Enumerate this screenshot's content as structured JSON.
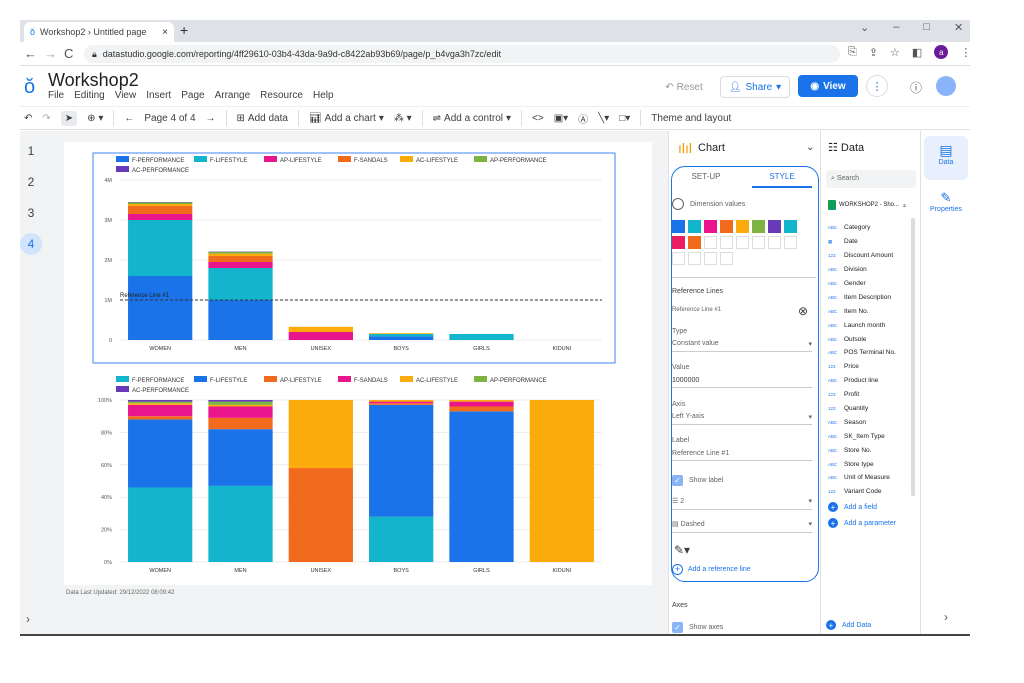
{
  "browser": {
    "tab_title": "Workshop2 › Untitled page",
    "tab_close": "×",
    "new_tab": "+",
    "url": "datastudio.google.com/reporting/4ff29610-03b4-43da-9a9d-c8422ab93b69/page/p_b4vga3h7zc/edit",
    "profile_initial": "a"
  },
  "app": {
    "title": "Workshop2",
    "menu": [
      "File",
      "Editing",
      "View",
      "Insert",
      "Page",
      "Arrange",
      "Resource",
      "Help"
    ],
    "reset_label": "Reset",
    "share_label": "Share",
    "view_label": "View"
  },
  "toolbar": {
    "page_nav": "Page 4 of 4",
    "add_data": "Add data",
    "add_chart": "Add a chart",
    "add_control": "Add a control",
    "theme_layout": "Theme and layout"
  },
  "pages": [
    "1",
    "2",
    "3",
    "4"
  ],
  "active_page": "4",
  "last_updated": "Data Last Updated: 29/12/2022 08:09:42",
  "chart_data": [
    {
      "type": "bar",
      "stacked": true,
      "categories": [
        "WOMEN",
        "MEN",
        "UNISEX",
        "BOYS",
        "GIRLS",
        "KIDUNI"
      ],
      "ylim": [
        0,
        4000000
      ],
      "yticks": [
        "0",
        "1M",
        "2M",
        "3M",
        "4M"
      ],
      "legend_position": "top",
      "reference_line": {
        "label": "Reference Line #1",
        "value": 1000000
      },
      "series": [
        {
          "name": "F-PERFORMANCE",
          "color": "#1a73e8",
          "values": [
            1600000,
            1000000,
            0,
            90000,
            0,
            0
          ]
        },
        {
          "name": "F-LIFESTYLE",
          "color": "#12b5cb",
          "values": [
            1400000,
            800000,
            0,
            60000,
            150000,
            0
          ]
        },
        {
          "name": "AP-LIFESTYLE",
          "color": "#e8158c",
          "values": [
            150000,
            150000,
            200000,
            0,
            0,
            0
          ]
        },
        {
          "name": "F-SANDALS",
          "color": "#f26b1d",
          "values": [
            200000,
            150000,
            0,
            0,
            0,
            0
          ]
        },
        {
          "name": "AC-LIFESTYLE",
          "color": "#fbab0b",
          "values": [
            50000,
            60000,
            130000,
            20000,
            0,
            0
          ]
        },
        {
          "name": "AP-PERFORMANCE",
          "color": "#7cb342",
          "values": [
            40000,
            40000,
            0,
            0,
            0,
            0
          ]
        },
        {
          "name": "AC-PERFORMANCE",
          "color": "#673ab7",
          "values": [
            10000,
            10000,
            0,
            0,
            0,
            0
          ]
        }
      ]
    },
    {
      "type": "bar",
      "stacked": true,
      "percent": true,
      "categories": [
        "WOMEN",
        "MEN",
        "UNISEX",
        "BOYS",
        "GIRLS",
        "KIDUNI"
      ],
      "ylim": [
        0,
        100
      ],
      "yticks": [
        "0%",
        "20%",
        "40%",
        "60%",
        "80%",
        "100%"
      ],
      "legend_position": "top",
      "series": [
        {
          "name": "F-PERFORMANCE",
          "color": "#12b5cb",
          "values": [
            46,
            47,
            0,
            28,
            0,
            0
          ]
        },
        {
          "name": "F-LIFESTYLE",
          "color": "#1a73e8",
          "values": [
            42,
            35,
            0,
            69,
            93,
            0
          ]
        },
        {
          "name": "AP-LIFESTYLE",
          "color": "#f26b1d",
          "values": [
            2,
            7,
            58,
            1,
            3,
            0
          ]
        },
        {
          "name": "F-SANDALS",
          "color": "#e8158c",
          "values": [
            7,
            7,
            0,
            1,
            3,
            0
          ]
        },
        {
          "name": "AC-LIFESTYLE",
          "color": "#fbab0b",
          "values": [
            1,
            1,
            42,
            1,
            1,
            100
          ]
        },
        {
          "name": "AP-PERFORMANCE",
          "color": "#7cb342",
          "values": [
            1,
            2,
            0,
            0,
            0,
            0
          ]
        },
        {
          "name": "AC-PERFORMANCE",
          "color": "#673ab7",
          "values": [
            1,
            1,
            0,
            0,
            0,
            0
          ]
        }
      ]
    }
  ],
  "chart_panel": {
    "title": "Chart",
    "tabs": [
      "SET-UP",
      "STYLE"
    ],
    "active_tab": "STYLE",
    "dimension_values": "Dimension values",
    "swatches": [
      "#1a73e8",
      "#12b5cb",
      "#e8158c",
      "#f26b1d",
      "#fbab0b",
      "#7cb342",
      "#673ab7",
      "#12b5cb",
      "#e91e63",
      "#f26b1d"
    ],
    "reference_lines": "Reference Lines",
    "ref_line_name": "Reference Line #1",
    "type_label": "Type",
    "type_value": "Constant value",
    "value_label": "Value",
    "value_value": "1000000",
    "axis_label": "Axis",
    "axis_value": "Left Y-axis",
    "label_label": "Label",
    "label_value": "Reference Line #1",
    "show_label": "Show label",
    "weight_value": "2",
    "line_style": "Dashed",
    "add_reference_line": "Add a reference line",
    "axes": "Axes",
    "show_axes": "Show axes"
  },
  "data_panel": {
    "title": "Data",
    "search_placeholder": "Search",
    "source": "WORKSHOP2 - Sho...",
    "fields": [
      {
        "type": "ABC",
        "name": "Category"
      },
      {
        "type": "cal",
        "name": "Date"
      },
      {
        "type": "123",
        "name": "Discount Amount"
      },
      {
        "type": "ABC",
        "name": "Division"
      },
      {
        "type": "ABC",
        "name": "Gender"
      },
      {
        "type": "ABC",
        "name": "Item Description"
      },
      {
        "type": "ABC",
        "name": "Item No."
      },
      {
        "type": "ABC",
        "name": "Launch month"
      },
      {
        "type": "ABC",
        "name": "Outsole"
      },
      {
        "type": "ABC",
        "name": "POS Terminal No."
      },
      {
        "type": "123",
        "name": "Price"
      },
      {
        "type": "ABC",
        "name": "Product line"
      },
      {
        "type": "123",
        "name": "Profit"
      },
      {
        "type": "123",
        "name": "Quantity"
      },
      {
        "type": "ABC",
        "name": "Season"
      },
      {
        "type": "ABC",
        "name": "SK_Item Type"
      },
      {
        "type": "ABC",
        "name": "Store No."
      },
      {
        "type": "ABC",
        "name": "Store type"
      },
      {
        "type": "ABC",
        "name": "Unit of Measure"
      },
      {
        "type": "123",
        "name": "Variant Code"
      }
    ],
    "add_field": "Add a field",
    "add_parameter": "Add a parameter",
    "add_data": "Add Data"
  },
  "rail": {
    "data": "Data",
    "properties": "Properties"
  }
}
